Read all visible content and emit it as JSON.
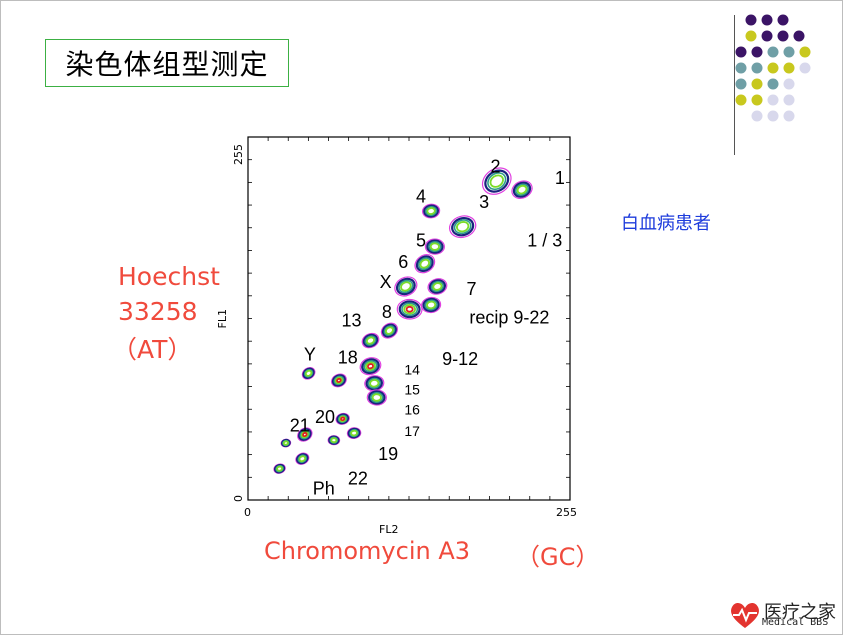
{
  "slide": {
    "title": "染色体组型测定",
    "y_axis_label_lines": [
      "Hoechst",
      "33258",
      "（AT）"
    ],
    "x_axis_label_main": "Chromomycin A3",
    "x_axis_label_paren": "（GC）",
    "patient_note": "白血病患者",
    "logo_text": "医疗之家",
    "logo_sub": "Medical BBS"
  },
  "colors": {
    "red_label": "#f04a3c",
    "blue_note": "#1e3cdc",
    "contour_outer": "#e040e0",
    "contour_2": "#1a237e",
    "contour_3": "#2e9e8a",
    "contour_4": "#7cdc2a",
    "contour_core": "#e02020",
    "dot_purple": "#3b1466",
    "dot_teal": "#6f9fa6",
    "dot_yellow": "#c8c81e",
    "dot_lavender": "#d8d8ec"
  },
  "chart_data": {
    "type": "scatter",
    "subtype": "bivariate flow karyotype contour plot",
    "xlabel": "FL2",
    "ylabel": "FL1",
    "xlim": [
      0,
      255
    ],
    "ylim": [
      0,
      255
    ],
    "x_ticks": [
      "0",
      "255"
    ],
    "y_ticks": [
      "0",
      "255"
    ],
    "clusters": [
      {
        "x": 197,
        "y": 224,
        "size": 1.6,
        "core": false
      },
      {
        "x": 217,
        "y": 218,
        "size": 1.1,
        "core": false
      },
      {
        "x": 170,
        "y": 192,
        "size": 1.4,
        "core": false
      },
      {
        "x": 145,
        "y": 203,
        "size": 0.9,
        "core": false
      },
      {
        "x": 148,
        "y": 178,
        "size": 1.0,
        "core": false
      },
      {
        "x": 140,
        "y": 166,
        "size": 1.1,
        "core": false
      },
      {
        "x": 125,
        "y": 150,
        "size": 1.2,
        "core": false
      },
      {
        "x": 150,
        "y": 150,
        "size": 1.0,
        "core": false
      },
      {
        "x": 145,
        "y": 137,
        "size": 1.0,
        "core": false
      },
      {
        "x": 128,
        "y": 134,
        "size": 1.3,
        "core": true
      },
      {
        "x": 112,
        "y": 119,
        "size": 0.9,
        "core": false
      },
      {
        "x": 97,
        "y": 112,
        "size": 0.9,
        "core": false
      },
      {
        "x": 97,
        "y": 94,
        "size": 1.1,
        "core": true
      },
      {
        "x": 100,
        "y": 82,
        "size": 1.0,
        "core": false
      },
      {
        "x": 102,
        "y": 72,
        "size": 1.0,
        "core": false
      },
      {
        "x": 48,
        "y": 89,
        "size": 0.7,
        "core": false
      },
      {
        "x": 72,
        "y": 84,
        "size": 0.8,
        "core": true
      },
      {
        "x": 75,
        "y": 57,
        "size": 0.7,
        "core": true
      },
      {
        "x": 84,
        "y": 47,
        "size": 0.7,
        "core": false
      },
      {
        "x": 68,
        "y": 42,
        "size": 0.6,
        "core": false
      },
      {
        "x": 45,
        "y": 46,
        "size": 0.8,
        "core": true
      },
      {
        "x": 43,
        "y": 29,
        "size": 0.7,
        "core": false
      },
      {
        "x": 25,
        "y": 22,
        "size": 0.6,
        "core": false
      },
      {
        "x": 30,
        "y": 40,
        "size": 0.5,
        "core": false
      }
    ],
    "annotations": [
      {
        "text": "2",
        "x": 196,
        "y": 230
      },
      {
        "text": "1",
        "x": 247,
        "y": 222
      },
      {
        "text": "4",
        "x": 137,
        "y": 209
      },
      {
        "text": "3",
        "x": 187,
        "y": 205
      },
      {
        "text": "1 / 3",
        "x": 235,
        "y": 178
      },
      {
        "text": "5",
        "x": 137,
        "y": 178
      },
      {
        "text": "6",
        "x": 123,
        "y": 163
      },
      {
        "text": "X",
        "x": 109,
        "y": 149
      },
      {
        "text": "7",
        "x": 177,
        "y": 144
      },
      {
        "text": "8",
        "x": 110,
        "y": 128
      },
      {
        "text": "recip 9-22",
        "x": 207,
        "y": 124
      },
      {
        "text": "13",
        "x": 82,
        "y": 122
      },
      {
        "text": "Y",
        "x": 49,
        "y": 98
      },
      {
        "text": "18",
        "x": 79,
        "y": 96
      },
      {
        "text": "9-12",
        "x": 168,
        "y": 95
      },
      {
        "text": "14",
        "x": 130,
        "y": 88
      },
      {
        "text": "15",
        "x": 130,
        "y": 74
      },
      {
        "text": "16",
        "x": 130,
        "y": 60
      },
      {
        "text": "17",
        "x": 130,
        "y": 45
      },
      {
        "text": "21",
        "x": 41,
        "y": 48
      },
      {
        "text": "20",
        "x": 61,
        "y": 54
      },
      {
        "text": "19",
        "x": 111,
        "y": 28
      },
      {
        "text": "22",
        "x": 87,
        "y": 11
      },
      {
        "text": "Ph",
        "x": 60,
        "y": 4
      }
    ]
  }
}
